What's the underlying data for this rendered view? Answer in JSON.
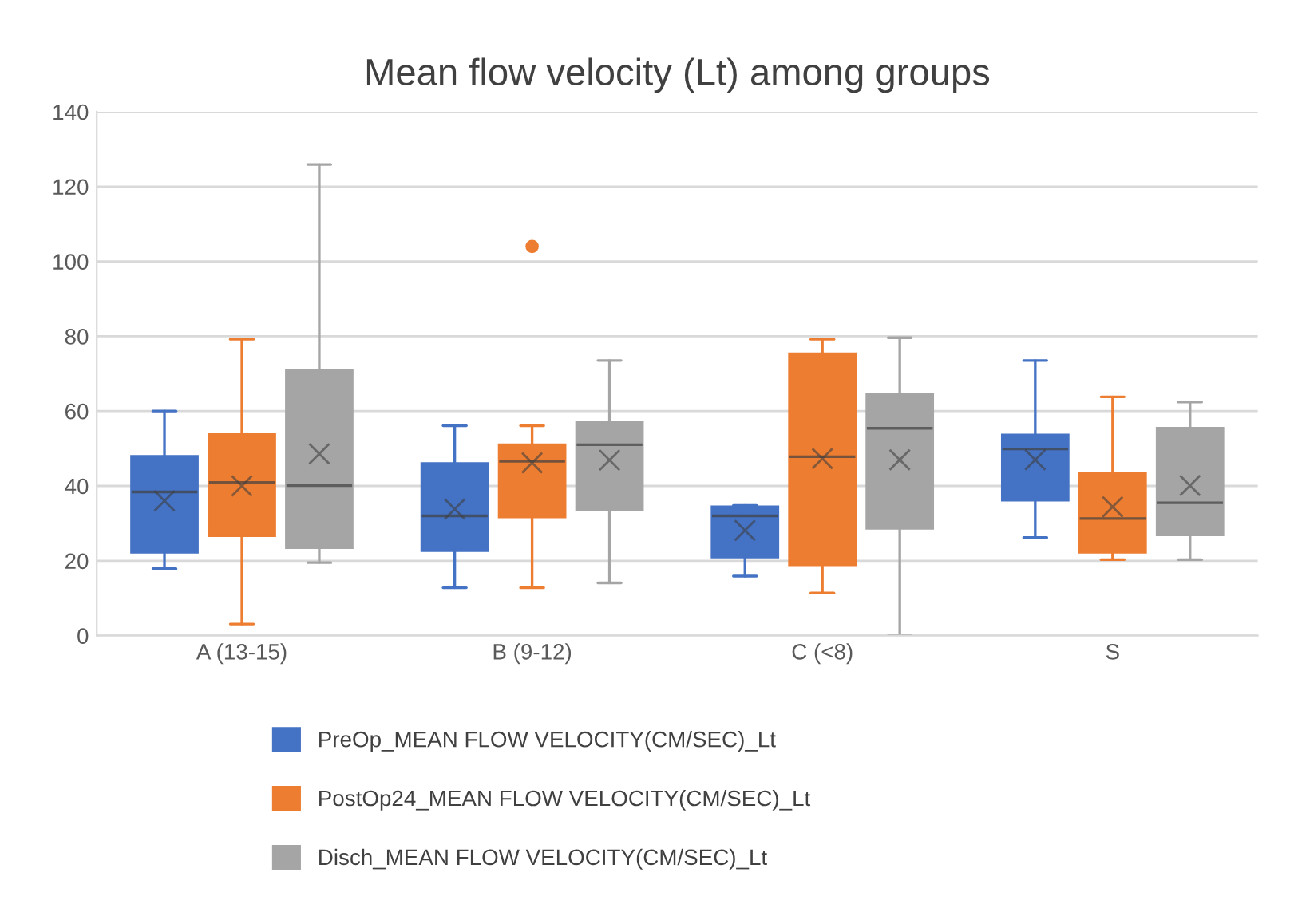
{
  "chart_data": {
    "type": "box",
    "title": "Mean flow velocity (Lt) among groups",
    "categories": [
      "A (13-15)",
      "B (9-12)",
      "C (<8)",
      "S"
    ],
    "ylim": [
      0,
      140
    ],
    "yticks": [
      0,
      20,
      40,
      60,
      80,
      100,
      120,
      140
    ],
    "grid": "y",
    "legend": "bottom",
    "marker": "cross",
    "series": [
      {
        "name": "PreOp_MEAN FLOW VELOCITY(CM/SEC)_Lt",
        "color": "#4472c4",
        "boxes": [
          {
            "low": 17.9,
            "q1": 22.3,
            "median": 38.4,
            "q3": 47.9,
            "high": 60,
            "mean": 36
          },
          {
            "low": 12.8,
            "q1": 22.7,
            "median": 32,
            "q3": 46,
            "high": 56.1,
            "mean": 33.8
          },
          {
            "low": 15.9,
            "q1": 21,
            "median": 32,
            "q3": 34.4,
            "high": 34.8,
            "mean": 28.1
          },
          {
            "low": 26.2,
            "q1": 36.2,
            "median": 49.9,
            "q3": 53.6,
            "high": 73.5,
            "mean": 47
          }
        ]
      },
      {
        "name": "PostOp24_MEAN FLOW VELOCITY(CM/SEC)_Lt",
        "color": "#ed7d31",
        "boxes": [
          {
            "low": 3.1,
            "q1": 26.7,
            "median": 40.9,
            "q3": 53.7,
            "high": 79.2,
            "mean": 40
          },
          {
            "low": 12.8,
            "q1": 31.7,
            "median": 46.6,
            "q3": 51,
            "high": 56.1,
            "mean": 46.2,
            "outliers": [
              104
            ]
          },
          {
            "low": 11.4,
            "q1": 18.9,
            "median": 47.8,
            "q3": 75.3,
            "high": 79.2,
            "mean": 47.3
          },
          {
            "low": 20.3,
            "q1": 22.3,
            "median": 31.3,
            "q3": 43.3,
            "high": 63.8,
            "mean": 34.4
          }
        ]
      },
      {
        "name": "Disch_MEAN FLOW VELOCITY(CM/SEC)_Lt",
        "color": "#a5a5a5",
        "boxes": [
          {
            "low": 19.5,
            "q1": 23.5,
            "median": 40.1,
            "q3": 70.8,
            "high": 125.9,
            "mean": 48.6
          },
          {
            "low": 14.1,
            "q1": 33.7,
            "median": 51,
            "q3": 56.9,
            "high": 73.5,
            "mean": 46.9
          },
          {
            "low": 0,
            "q1": 28.7,
            "median": 55.4,
            "q3": 64.4,
            "high": 79.6,
            "mean": 47
          },
          {
            "low": 20.3,
            "q1": 26.9,
            "median": 35.5,
            "q3": 55.4,
            "high": 62.4,
            "mean": 40.1
          }
        ]
      }
    ]
  }
}
